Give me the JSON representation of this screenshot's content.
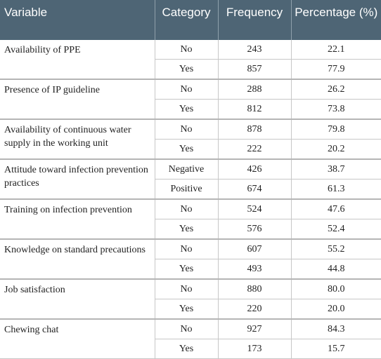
{
  "table": {
    "headers": {
      "variable": "Variable",
      "category": "Category",
      "frequency": "Frequency",
      "percentage": "Percentage (%)"
    },
    "groups": [
      {
        "variable": "Availability of PPE",
        "rows": [
          {
            "category": "No",
            "frequency": "243",
            "percentage": "22.1"
          },
          {
            "category": "Yes",
            "frequency": "857",
            "percentage": "77.9"
          }
        ]
      },
      {
        "variable": "Presence of IP guideline",
        "rows": [
          {
            "category": "No",
            "frequency": "288",
            "percentage": "26.2"
          },
          {
            "category": "Yes",
            "frequency": "812",
            "percentage": "73.8"
          }
        ]
      },
      {
        "variable": "Availability of continuous water supply in the working unit",
        "rows": [
          {
            "category": "No",
            "frequency": "878",
            "percentage": "79.8"
          },
          {
            "category": "Yes",
            "frequency": "222",
            "percentage": "20.2"
          }
        ]
      },
      {
        "variable": "Attitude toward infection prevention practices",
        "rows": [
          {
            "category": "Negative",
            "frequency": "426",
            "percentage": "38.7"
          },
          {
            "category": "Positive",
            "frequency": "674",
            "percentage": "61.3"
          }
        ]
      },
      {
        "variable": "Training on infection prevention",
        "rows": [
          {
            "category": "No",
            "frequency": "524",
            "percentage": "47.6"
          },
          {
            "category": "Yes",
            "frequency": "576",
            "percentage": "52.4"
          }
        ]
      },
      {
        "variable": "Knowledge on standard precautions",
        "rows": [
          {
            "category": "No",
            "frequency": "607",
            "percentage": "55.2"
          },
          {
            "category": "Yes",
            "frequency": "493",
            "percentage": "44.8"
          }
        ]
      },
      {
        "variable": "Job satisfaction",
        "rows": [
          {
            "category": "No",
            "frequency": "880",
            "percentage": "80.0"
          },
          {
            "category": "Yes",
            "frequency": "220",
            "percentage": "20.0"
          }
        ]
      },
      {
        "variable": "Chewing chat",
        "rows": [
          {
            "category": "No",
            "frequency": "927",
            "percentage": "84.3"
          },
          {
            "category": "Yes",
            "frequency": "173",
            "percentage": "15.7"
          }
        ]
      }
    ]
  }
}
